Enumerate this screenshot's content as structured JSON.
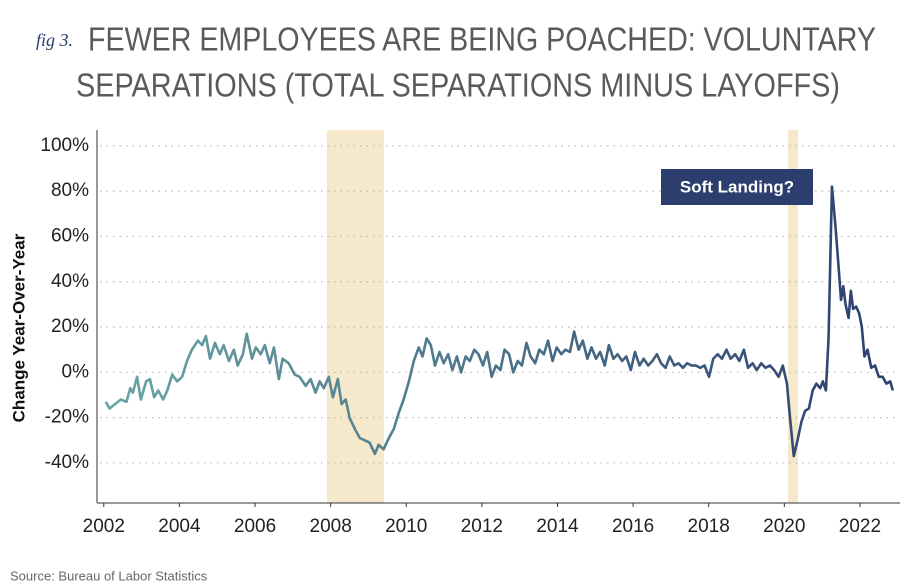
{
  "chart_data": {
    "type": "line",
    "fig_label": "fig 3.",
    "title": [
      "FEWER EMPLOYEES ARE BEING POACHED: VOLUNTARY",
      "SEPARATIONS (TOTAL SEPARATIONS MINUS LAYOFFS)"
    ],
    "y_label": "Change Year-Over-Year",
    "source": "Source: Bureau of Labor Statistics",
    "annotation": "Soft Landing?",
    "annotation_color": "#2c3e6e",
    "colors": [
      "#6aa6a4",
      "#2c3e6e"
    ],
    "shade_color": "#f6e8ca",
    "shaded_spans": [
      [
        2007.9,
        2009.41
      ],
      [
        2020.1,
        2020.36
      ]
    ],
    "xlim": [
      2001.82,
      2023.06
    ],
    "xticks": [
      2002,
      2004,
      2006,
      2008,
      2010,
      2012,
      2014,
      2016,
      2018,
      2020,
      2022
    ],
    "ylim": [
      -57.7,
      107
    ],
    "yticks": [
      {
        "value": -40,
        "label": "-40%"
      },
      {
        "value": -20,
        "label": "-20%"
      },
      {
        "value": 0,
        "label": "0%"
      },
      {
        "value": 20,
        "label": "20%"
      },
      {
        "value": 40,
        "label": "40%"
      },
      {
        "value": 60,
        "label": "60%"
      },
      {
        "value": 80,
        "label": "80%"
      },
      {
        "value": 100,
        "label": "100%"
      }
    ],
    "grid": true,
    "x": [
      2002.05,
      2002.15,
      2002.3,
      2002.45,
      2002.6,
      2002.7,
      2002.77,
      2002.88,
      2002.98,
      2003.12,
      2003.22,
      2003.33,
      2003.44,
      2003.57,
      2003.68,
      2003.81,
      2003.94,
      2004.07,
      2004.2,
      2004.33,
      2004.49,
      2004.6,
      2004.7,
      2004.81,
      2004.94,
      2005.07,
      2005.17,
      2005.31,
      2005.44,
      2005.54,
      2005.68,
      2005.78,
      2005.92,
      2006.02,
      2006.15,
      2006.26,
      2006.39,
      2006.5,
      2006.63,
      2006.73,
      2006.89,
      2007.05,
      2007.18,
      2007.34,
      2007.47,
      2007.6,
      2007.71,
      2007.82,
      2007.95,
      2008.06,
      2008.19,
      2008.29,
      2008.4,
      2008.5,
      2008.64,
      2008.77,
      2008.9,
      2009.03,
      2009.17,
      2009.27,
      2009.4,
      2009.54,
      2009.67,
      2009.8,
      2009.93,
      2010.07,
      2010.2,
      2010.33,
      2010.43,
      2010.54,
      2010.65,
      2010.76,
      2010.88,
      2010.99,
      2011.11,
      2011.22,
      2011.34,
      2011.45,
      2011.57,
      2011.68,
      2011.8,
      2011.91,
      2012.03,
      2012.14,
      2012.26,
      2012.37,
      2012.49,
      2012.6,
      2012.72,
      2012.83,
      2012.95,
      2013.06,
      2013.18,
      2013.29,
      2013.41,
      2013.52,
      2013.64,
      2013.75,
      2013.87,
      2013.98,
      2014.1,
      2014.21,
      2014.33,
      2014.44,
      2014.56,
      2014.67,
      2014.79,
      2014.9,
      2015.02,
      2015.13,
      2015.25,
      2015.36,
      2015.48,
      2015.59,
      2015.71,
      2015.82,
      2015.94,
      2016.05,
      2016.17,
      2016.28,
      2016.4,
      2016.51,
      2016.63,
      2016.74,
      2016.86,
      2016.97,
      2017.09,
      2017.2,
      2017.32,
      2017.43,
      2017.55,
      2017.66,
      2017.78,
      2017.89,
      2018.01,
      2018.12,
      2018.24,
      2018.35,
      2018.47,
      2018.58,
      2018.7,
      2018.81,
      2018.93,
      2019.04,
      2019.16,
      2019.27,
      2019.39,
      2019.5,
      2019.62,
      2019.73,
      2019.85,
      2019.96,
      2020.07,
      2020.15,
      2020.25,
      2020.35,
      2020.45,
      2020.55,
      2020.65,
      2020.75,
      2020.85,
      2020.95,
      2021.02,
      2021.1,
      2021.17,
      2021.26,
      2021.35,
      2021.42,
      2021.5,
      2021.56,
      2021.62,
      2021.7,
      2021.76,
      2021.82,
      2021.9,
      2021.98,
      2022.05,
      2022.12,
      2022.2,
      2022.3,
      2022.4,
      2022.5,
      2022.6,
      2022.7,
      2022.8,
      2022.87
    ],
    "values": [
      -13,
      -16,
      -14,
      -12,
      -13,
      -7,
      -9,
      -2,
      -12,
      -4,
      -3,
      -11,
      -8,
      -12,
      -8,
      -1,
      -4,
      -2,
      5,
      10,
      14,
      12,
      16,
      6,
      13,
      8,
      12,
      5,
      10,
      3,
      8,
      17,
      6,
      11,
      8,
      12,
      4,
      11,
      -3,
      6,
      4,
      -1,
      -2,
      -6,
      -3,
      -9,
      -4,
      -7,
      -2,
      -11,
      -3,
      -14,
      -12,
      -20,
      -25,
      -29,
      -30,
      -31,
      -36,
      -32,
      -34,
      -29,
      -25,
      -18,
      -12,
      -4,
      5,
      11,
      7,
      15,
      12,
      3,
      9,
      4,
      8,
      1,
      7,
      0,
      7,
      5,
      10,
      8,
      3,
      9,
      -2,
      3,
      1,
      10,
      8,
      0,
      5,
      3,
      13,
      7,
      4,
      10,
      8,
      14,
      5,
      11,
      8,
      10,
      9,
      18,
      10,
      14,
      6,
      11,
      6,
      9,
      3,
      12,
      6,
      8,
      5,
      7,
      1,
      9,
      3,
      6,
      3,
      5,
      8,
      4,
      2,
      7,
      3,
      4,
      2,
      4,
      3,
      3,
      2,
      3,
      -2,
      6,
      8,
      6,
      10,
      6,
      8,
      5,
      10,
      2,
      4,
      1,
      4,
      2,
      3,
      1,
      -2,
      3,
      -5,
      -20,
      -37,
      -30,
      -22,
      -17,
      -16,
      -8,
      -5,
      -7,
      -4,
      -8,
      15,
      82,
      65,
      50,
      32,
      38,
      30,
      24,
      36,
      28,
      29,
      26,
      20,
      7,
      10,
      2,
      3,
      -2,
      -2,
      -5,
      -4,
      -8
    ]
  }
}
